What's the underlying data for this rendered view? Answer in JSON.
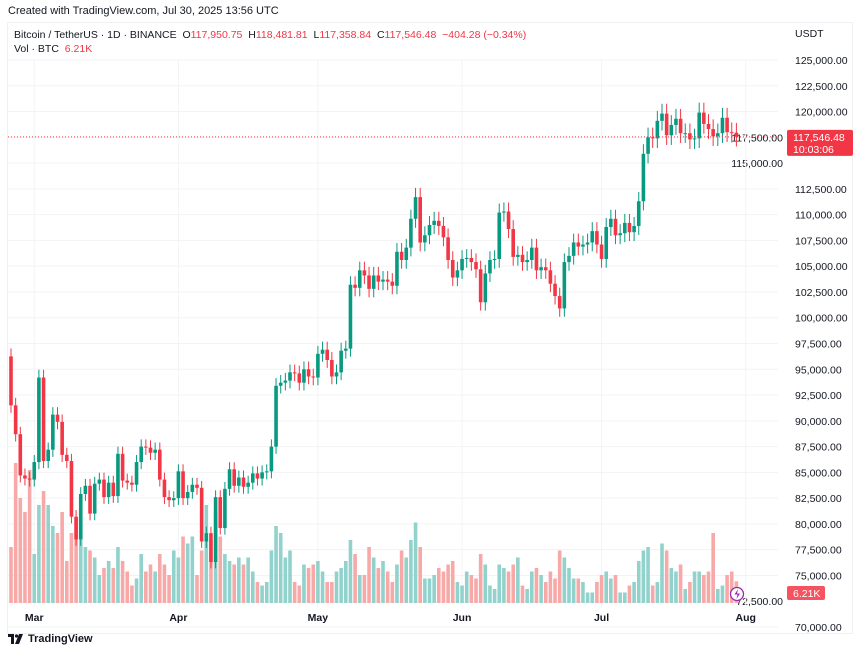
{
  "header": {
    "created": "Created with TradingView.com, Jul 30, 2025 13:56 UTC"
  },
  "legend": {
    "symbol": "Bitcoin / TetherUS · 1D · BINANCE",
    "o_label": "O",
    "o": "117,950.75",
    "h_label": "H",
    "h": "118,481.81",
    "l_label": "L",
    "l": "117,358.84",
    "c_label": "C",
    "c": "117,546.48",
    "change": "−404.28 (−0.34%)",
    "vol_label": "Vol · BTC",
    "vol": "6.21K"
  },
  "price_axis": {
    "currency": "USDT",
    "last_price": "117,546.48",
    "countdown": "10:03:06",
    "last_volume": "6.21K"
  },
  "footer": {
    "brand": "TradingView"
  },
  "colors": {
    "up": "#089981",
    "down": "#f23645",
    "vol_up": "#92d2cc",
    "vol_down": "#f7a9a7"
  },
  "chart_data": {
    "type": "candlestick",
    "title": "Bitcoin / TetherUS · 1D · BINANCE",
    "ylim": [
      70000,
      125000
    ],
    "y_ticks": [
      "125,000.00",
      "122,500.00",
      "120,000.00",
      "117,500.00",
      "115,000.00",
      "112,500.00",
      "110,000.00",
      "107,500.00",
      "105,000.00",
      "102,500.00",
      "100,000.00",
      "97,500.00",
      "95,000.00",
      "92,500.00",
      "90,000.00",
      "87,500.00",
      "85,000.00",
      "82,500.00",
      "80,000.00",
      "77,500.00",
      "75,000.00",
      "72,500.00",
      "70,000.00"
    ],
    "x_ticks": [
      {
        "label": "Mar",
        "date": "2025-03-01"
      },
      {
        "label": "Apr",
        "date": "2025-04-01"
      },
      {
        "label": "May",
        "date": "2025-05-01"
      },
      {
        "label": "Jun",
        "date": "2025-06-01"
      },
      {
        "label": "Jul",
        "date": "2025-07-01"
      },
      {
        "label": "Aug",
        "date": "2025-08-01"
      }
    ],
    "first_open": 96250,
    "columns": [
      "date",
      "close",
      "volume_k_btc"
    ],
    "candles": [
      [
        "2025-02-24",
        91500,
        16
      ],
      [
        "2025-02-25",
        88700,
        40
      ],
      [
        "2025-02-26",
        84700,
        30
      ],
      [
        "2025-02-27",
        84400,
        26
      ],
      [
        "2025-02-28",
        84300,
        38
      ],
      [
        "2025-03-01",
        86000,
        14
      ],
      [
        "2025-03-02",
        94200,
        28
      ],
      [
        "2025-03-03",
        86100,
        32
      ],
      [
        "2025-03-04",
        87200,
        28
      ],
      [
        "2025-03-05",
        90600,
        22
      ],
      [
        "2025-03-06",
        89900,
        20
      ],
      [
        "2025-03-07",
        86700,
        26
      ],
      [
        "2025-03-08",
        86100,
        12
      ],
      [
        "2025-03-09",
        80700,
        20
      ],
      [
        "2025-03-10",
        78500,
        24
      ],
      [
        "2025-03-11",
        82900,
        24
      ],
      [
        "2025-03-12",
        83700,
        16
      ],
      [
        "2025-03-13",
        81000,
        15
      ],
      [
        "2025-03-14",
        83900,
        13
      ],
      [
        "2025-03-15",
        84300,
        8
      ],
      [
        "2025-03-16",
        82600,
        10
      ],
      [
        "2025-03-17",
        84000,
        12
      ],
      [
        "2025-03-18",
        82700,
        10
      ],
      [
        "2025-03-19",
        86800,
        16
      ],
      [
        "2025-03-20",
        84200,
        12
      ],
      [
        "2025-03-21",
        84000,
        9
      ],
      [
        "2025-03-22",
        83800,
        5
      ],
      [
        "2025-03-23",
        86000,
        7
      ],
      [
        "2025-03-24",
        87500,
        14
      ],
      [
        "2025-03-25",
        87400,
        9
      ],
      [
        "2025-03-26",
        86900,
        11
      ],
      [
        "2025-03-27",
        87200,
        9
      ],
      [
        "2025-03-28",
        84300,
        14
      ],
      [
        "2025-03-29",
        82600,
        11
      ],
      [
        "2025-03-30",
        82300,
        8
      ],
      [
        "2025-03-31",
        82500,
        15
      ],
      [
        "2025-04-01",
        85100,
        13
      ],
      [
        "2025-04-02",
        82500,
        19
      ],
      [
        "2025-04-03",
        83100,
        17
      ],
      [
        "2025-04-04",
        83800,
        19
      ],
      [
        "2025-04-05",
        83500,
        8
      ],
      [
        "2025-04-06",
        78300,
        15
      ],
      [
        "2025-04-07",
        79100,
        28
      ],
      [
        "2025-04-08",
        76300,
        18
      ],
      [
        "2025-04-09",
        82600,
        26
      ],
      [
        "2025-04-10",
        79600,
        19
      ],
      [
        "2025-04-11",
        83400,
        14
      ],
      [
        "2025-04-12",
        85300,
        12
      ],
      [
        "2025-04-13",
        83700,
        11
      ],
      [
        "2025-04-14",
        84500,
        13
      ],
      [
        "2025-04-15",
        83600,
        11
      ],
      [
        "2025-04-16",
        84000,
        13
      ],
      [
        "2025-04-17",
        84900,
        9
      ],
      [
        "2025-04-18",
        84400,
        6
      ],
      [
        "2025-04-19",
        85000,
        5
      ],
      [
        "2025-04-20",
        85100,
        6
      ],
      [
        "2025-04-21",
        87500,
        15
      ],
      [
        "2025-04-22",
        93400,
        22
      ],
      [
        "2025-04-23",
        93700,
        20
      ],
      [
        "2025-04-24",
        93900,
        13
      ],
      [
        "2025-04-25",
        94700,
        15
      ],
      [
        "2025-04-26",
        94600,
        6
      ],
      [
        "2025-04-27",
        93700,
        5
      ],
      [
        "2025-04-28",
        95000,
        11
      ],
      [
        "2025-04-29",
        94300,
        10
      ],
      [
        "2025-04-30",
        94200,
        11
      ],
      [
        "2025-05-01",
        96500,
        12
      ],
      [
        "2025-05-02",
        96900,
        9
      ],
      [
        "2025-05-03",
        95900,
        6
      ],
      [
        "2025-05-04",
        94300,
        6
      ],
      [
        "2025-05-05",
        94700,
        9
      ],
      [
        "2025-05-06",
        96800,
        10
      ],
      [
        "2025-05-07",
        97000,
        12
      ],
      [
        "2025-05-08",
        103200,
        18
      ],
      [
        "2025-05-09",
        102900,
        14
      ],
      [
        "2025-05-10",
        104600,
        8
      ],
      [
        "2025-05-11",
        104100,
        8
      ],
      [
        "2025-05-12",
        102800,
        16
      ],
      [
        "2025-05-13",
        104100,
        13
      ],
      [
        "2025-05-14",
        103500,
        10
      ],
      [
        "2025-05-15",
        103700,
        12
      ],
      [
        "2025-05-16",
        103500,
        9
      ],
      [
        "2025-05-17",
        103100,
        6
      ],
      [
        "2025-05-18",
        106400,
        11
      ],
      [
        "2025-05-19",
        105600,
        15
      ],
      [
        "2025-05-20",
        106800,
        13
      ],
      [
        "2025-05-21",
        109600,
        18
      ],
      [
        "2025-05-22",
        111700,
        23
      ],
      [
        "2025-05-23",
        107300,
        16
      ],
      [
        "2025-05-24",
        108000,
        7
      ],
      [
        "2025-05-25",
        109000,
        7
      ],
      [
        "2025-05-26",
        109400,
        8
      ],
      [
        "2025-05-27",
        108900,
        10
      ],
      [
        "2025-05-28",
        107800,
        9
      ],
      [
        "2025-05-29",
        105600,
        11
      ],
      [
        "2025-05-30",
        103900,
        12
      ],
      [
        "2025-05-31",
        104600,
        6
      ],
      [
        "2025-06-01",
        105700,
        5
      ],
      [
        "2025-06-02",
        105800,
        9
      ],
      [
        "2025-06-03",
        105400,
        8
      ],
      [
        "2025-06-04",
        104700,
        7
      ],
      [
        "2025-06-05",
        101500,
        14
      ],
      [
        "2025-06-06",
        104300,
        11
      ],
      [
        "2025-06-07",
        105600,
        5
      ],
      [
        "2025-06-08",
        105700,
        4
      ],
      [
        "2025-06-09",
        110200,
        11
      ],
      [
        "2025-06-10",
        110300,
        10
      ],
      [
        "2025-06-11",
        108600,
        9
      ],
      [
        "2025-06-12",
        105900,
        11
      ],
      [
        "2025-06-13",
        106100,
        13
      ],
      [
        "2025-06-14",
        105400,
        5
      ],
      [
        "2025-06-15",
        105600,
        4
      ],
      [
        "2025-06-16",
        106800,
        9
      ],
      [
        "2025-06-17",
        104600,
        10
      ],
      [
        "2025-06-18",
        104900,
        8
      ],
      [
        "2025-06-19",
        104600,
        6
      ],
      [
        "2025-06-20",
        103300,
        9
      ],
      [
        "2025-06-21",
        102100,
        7
      ],
      [
        "2025-06-22",
        100900,
        15
      ],
      [
        "2025-06-23",
        105400,
        13
      ],
      [
        "2025-06-24",
        106000,
        10
      ],
      [
        "2025-06-25",
        107300,
        7
      ],
      [
        "2025-06-26",
        106900,
        7
      ],
      [
        "2025-06-27",
        107100,
        6
      ],
      [
        "2025-06-28",
        107300,
        3
      ],
      [
        "2025-06-29",
        108400,
        3
      ],
      [
        "2025-06-30",
        107100,
        6
      ],
      [
        "2025-07-01",
        105700,
        8
      ],
      [
        "2025-07-02",
        108800,
        9
      ],
      [
        "2025-07-03",
        109600,
        7
      ],
      [
        "2025-07-04",
        108000,
        8
      ],
      [
        "2025-07-05",
        108200,
        3
      ],
      [
        "2025-07-06",
        109200,
        3
      ],
      [
        "2025-07-07",
        108300,
        5
      ],
      [
        "2025-07-08",
        108900,
        6
      ],
      [
        "2025-07-09",
        111300,
        12
      ],
      [
        "2025-07-10",
        115900,
        15
      ],
      [
        "2025-07-11",
        117500,
        16
      ],
      [
        "2025-07-12",
        117400,
        5
      ],
      [
        "2025-07-13",
        119100,
        6
      ],
      [
        "2025-07-14",
        119800,
        17
      ],
      [
        "2025-07-15",
        117700,
        15
      ],
      [
        "2025-07-16",
        118700,
        10
      ],
      [
        "2025-07-17",
        119300,
        9
      ],
      [
        "2025-07-18",
        117900,
        11
      ],
      [
        "2025-07-19",
        117900,
        4
      ],
      [
        "2025-07-20",
        117300,
        6
      ],
      [
        "2025-07-21",
        117400,
        9
      ],
      [
        "2025-07-22",
        119900,
        9
      ],
      [
        "2025-07-23",
        118800,
        8
      ],
      [
        "2025-07-24",
        118300,
        9
      ],
      [
        "2025-07-25",
        117600,
        20
      ],
      [
        "2025-07-26",
        117900,
        4
      ],
      [
        "2025-07-27",
        119400,
        5
      ],
      [
        "2025-07-28",
        118000,
        8
      ],
      [
        "2025-07-29",
        117950,
        9
      ],
      [
        "2025-07-30",
        117546.48,
        6.21
      ]
    ]
  }
}
